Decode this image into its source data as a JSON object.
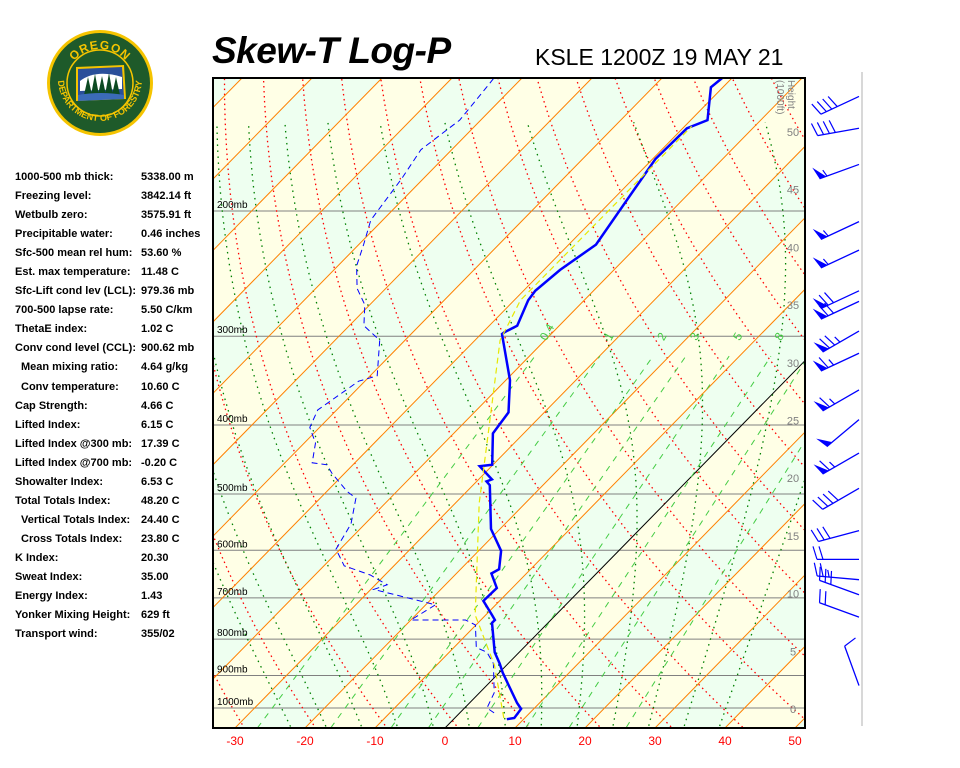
{
  "logo_text": {
    "top": "OREGON",
    "bottom": "DEPARTMENT OF FORESTRY"
  },
  "header": {
    "title": "Skew-T Log-P",
    "station": "KSLE 1200Z 19 MAY 21"
  },
  "stats": [
    {
      "label": "1000-500 mb thick:",
      "value": "5338.00 m",
      "indent": false
    },
    {
      "label": "Freezing level:",
      "value": "3842.14 ft",
      "indent": false
    },
    {
      "label": "Wetbulb zero:",
      "value": "3575.91 ft",
      "indent": false
    },
    {
      "label": "Precipitable water:",
      "value": "0.46 inches",
      "indent": false
    },
    {
      "label": "Sfc-500 mean rel hum:",
      "value": "53.60 %",
      "indent": false
    },
    {
      "label": "Est. max temperature:",
      "value": "11.48 C",
      "indent": false
    },
    {
      "label": "Sfc-Lift cond lev (LCL):",
      "value": "979.36 mb",
      "indent": false
    },
    {
      "label": "700-500 lapse rate:",
      "value": "5.50 C/km",
      "indent": false
    },
    {
      "label": "ThetaE index:",
      "value": "1.02 C",
      "indent": false
    },
    {
      "label": "Conv cond level (CCL):",
      "value": "900.62 mb",
      "indent": false
    },
    {
      "label": "Mean mixing ratio:",
      "value": "4.64 g/kg",
      "indent": true
    },
    {
      "label": "Conv temperature:",
      "value": "10.60 C",
      "indent": true
    },
    {
      "label": "Cap Strength:",
      "value": "4.66 C",
      "indent": false
    },
    {
      "label": "Lifted Index:",
      "value": "6.15 C",
      "indent": false
    },
    {
      "label": "Lifted Index @300 mb:",
      "value": "17.39 C",
      "indent": false
    },
    {
      "label": "Lifted Index @700 mb:",
      "value": "-0.20 C",
      "indent": false
    },
    {
      "label": "Showalter Index:",
      "value": "6.53 C",
      "indent": false
    },
    {
      "label": "Total Totals Index:",
      "value": "48.20 C",
      "indent": false
    },
    {
      "label": "Vertical Totals Index:",
      "value": "24.40 C",
      "indent": true
    },
    {
      "label": "Cross Totals Index:",
      "value": "23.80 C",
      "indent": true
    },
    {
      "label": "K Index:",
      "value": "20.30",
      "indent": false
    },
    {
      "label": "Sweat Index:",
      "value": "35.00",
      "indent": false
    },
    {
      "label": "Energy Index:",
      "value": "1.43",
      "indent": false
    },
    {
      "label": "Yonker Mixing Height:",
      "value": "629 ft",
      "indent": false
    },
    {
      "label": "Transport wind:",
      "value": "355/02",
      "indent": false
    }
  ],
  "chart_data": {
    "type": "line",
    "title": "Skew-T Log-P",
    "subtitle": "KSLE 1200Z 19 MAY 21",
    "x_ticks": [
      -30,
      -20,
      -10,
      0,
      10,
      20,
      30,
      40,
      50
    ],
    "xlim": [
      -33,
      52
    ],
    "ylim_mb": [
      1090,
      129
    ],
    "pressure_levels": [
      {
        "p": 200,
        "label": "200mb"
      },
      {
        "p": 300,
        "label": "300mb"
      },
      {
        "p": 400,
        "label": "400mb"
      },
      {
        "p": 500,
        "label": "500mb"
      },
      {
        "p": 600,
        "label": "600mb"
      },
      {
        "p": 700,
        "label": "700mb"
      },
      {
        "p": 800,
        "label": "800mb"
      },
      {
        "p": 900,
        "label": "900mb"
      },
      {
        "p": 1000,
        "label": "1000mb"
      }
    ],
    "height_axis": {
      "label": "Height (1000ft)",
      "ticks": [
        0,
        5,
        10,
        15,
        20,
        25,
        30,
        35,
        40,
        45,
        50
      ]
    },
    "mixing_ratio_labels": [
      "0.4",
      "1",
      "2",
      "3",
      "5",
      "8"
    ],
    "mixing_ratio_values": [
      0.4,
      1,
      2,
      3,
      5,
      8,
      12,
      20
    ],
    "colors": {
      "temperature": "#0000ff",
      "dewpoint": "#0000ff",
      "parcel": "#e8e800",
      "isotherm": "#ff8000",
      "zero_isotherm": "#000000",
      "dry_adiabat": "#ff0000",
      "moist_adiabat": "#008000",
      "mixing_ratio": "#44cc44",
      "band_warm": "#ffffe6",
      "band_cool": "#eefff0",
      "pressure_line": "#808080",
      "x_tick": "#ff0000",
      "height_tick": "#808080",
      "wind_barb": "#0000ff"
    },
    "series": [
      {
        "key": "temperature",
        "style": "solid",
        "points": [
          [
            1037,
            7.6
          ],
          [
            1033,
            8.5
          ],
          [
            1003,
            8.2
          ],
          [
            984,
            6.8
          ],
          [
            892,
            0.5
          ],
          [
            866,
            -1.2
          ],
          [
            835,
            -3.5
          ],
          [
            759,
            -8.0
          ],
          [
            752,
            -8.0
          ],
          [
            740,
            -9.1
          ],
          [
            707,
            -12.3
          ],
          [
            678,
            -12.2
          ],
          [
            647,
            -15.0
          ],
          [
            638,
            -14.5
          ],
          [
            601,
            -16.8
          ],
          [
            560,
            -21.3
          ],
          [
            486,
            -27.6
          ],
          [
            480,
            -28.6
          ],
          [
            477,
            -28.1
          ],
          [
            457,
            -31.7
          ],
          [
            455,
            -30.1
          ],
          [
            411,
            -34.4
          ],
          [
            384,
            -35.1
          ],
          [
            346,
            -39.4
          ],
          [
            298,
            -47.0
          ],
          [
            296,
            -46.9
          ],
          [
            290,
            -46.0
          ],
          [
            267,
            -48.0
          ],
          [
            259,
            -48.3
          ],
          [
            242,
            -47.7
          ],
          [
            223,
            -46.1
          ],
          [
            169,
            -49.6
          ],
          [
            153,
            -49.4
          ],
          [
            149,
            -47.6
          ],
          [
            134,
            -51.7
          ],
          [
            130,
            -51.4
          ]
        ]
      },
      {
        "key": "dewpoint",
        "style": "dashed",
        "points": [
          [
            1016,
            4.9
          ],
          [
            1000,
            3.2
          ],
          [
            952,
            2.1
          ],
          [
            866,
            -2.1
          ],
          [
            835,
            -4.6
          ],
          [
            822,
            -6.8
          ],
          [
            764,
            -10.1
          ],
          [
            752,
            -12.2
          ],
          [
            752,
            -20.0
          ],
          [
            716,
            -18.6
          ],
          [
            681,
            -29.6
          ],
          [
            671,
            -28.3
          ],
          [
            650,
            -32.1
          ],
          [
            631,
            -37.1
          ],
          [
            598,
            -40.6
          ],
          [
            551,
            -42.0
          ],
          [
            507,
            -44.9
          ],
          [
            496,
            -47.1
          ],
          [
            467,
            -51.9
          ],
          [
            455,
            -53.7
          ],
          [
            452,
            -56.1
          ],
          [
            424,
            -58.4
          ],
          [
            403,
            -61.4
          ],
          [
            381,
            -62.7
          ],
          [
            347,
            -60.9
          ],
          [
            341,
            -59.0
          ],
          [
            304,
            -63.6
          ],
          [
            290,
            -67.9
          ],
          [
            271,
            -70.7
          ],
          [
            257,
            -74.1
          ],
          [
            239,
            -77.3
          ],
          [
            223,
            -79.3
          ],
          [
            206,
            -81.7
          ],
          [
            180,
            -83.1
          ],
          [
            164,
            -84.4
          ],
          [
            149,
            -83.0
          ],
          [
            137,
            -83.6
          ],
          [
            130,
            -84.0
          ]
        ]
      },
      {
        "key": "parcel",
        "style": "dashed",
        "points": [
          [
            1033,
            7.0
          ],
          [
            871,
            -1.7
          ],
          [
            740,
            -11.5
          ],
          [
            515,
            -26.6
          ],
          [
            424,
            -33.9
          ],
          [
            304,
            -46.4
          ],
          [
            267,
            -49.1
          ],
          [
            152,
            -49.0
          ]
        ]
      }
    ],
    "wind_barbs": [
      {
        "p": 138,
        "dir": 245,
        "kt": 40
      },
      {
        "p": 153,
        "dir": 260,
        "kt": 40
      },
      {
        "p": 172,
        "dir": 250,
        "kt": 55
      },
      {
        "p": 207,
        "dir": 245,
        "kt": 55
      },
      {
        "p": 227,
        "dir": 245,
        "kt": 55
      },
      {
        "p": 259,
        "dir": 245,
        "kt": 70
      },
      {
        "p": 268,
        "dir": 245,
        "kt": 70
      },
      {
        "p": 295,
        "dir": 240,
        "kt": 75
      },
      {
        "p": 317,
        "dir": 245,
        "kt": 65
      },
      {
        "p": 357,
        "dir": 240,
        "kt": 65
      },
      {
        "p": 393,
        "dir": 230,
        "kt": 50
      },
      {
        "p": 438,
        "dir": 240,
        "kt": 65
      },
      {
        "p": 491,
        "dir": 240,
        "kt": 40
      },
      {
        "p": 563,
        "dir": 255,
        "kt": 30
      },
      {
        "p": 618,
        "dir": 270,
        "kt": 20
      },
      {
        "p": 660,
        "dir": 275,
        "kt": 25
      },
      {
        "p": 693,
        "dir": 290,
        "kt": 30
      },
      {
        "p": 745,
        "dir": 290,
        "kt": 20
      },
      {
        "p": 930,
        "dir": 340,
        "kt": 10
      }
    ]
  }
}
